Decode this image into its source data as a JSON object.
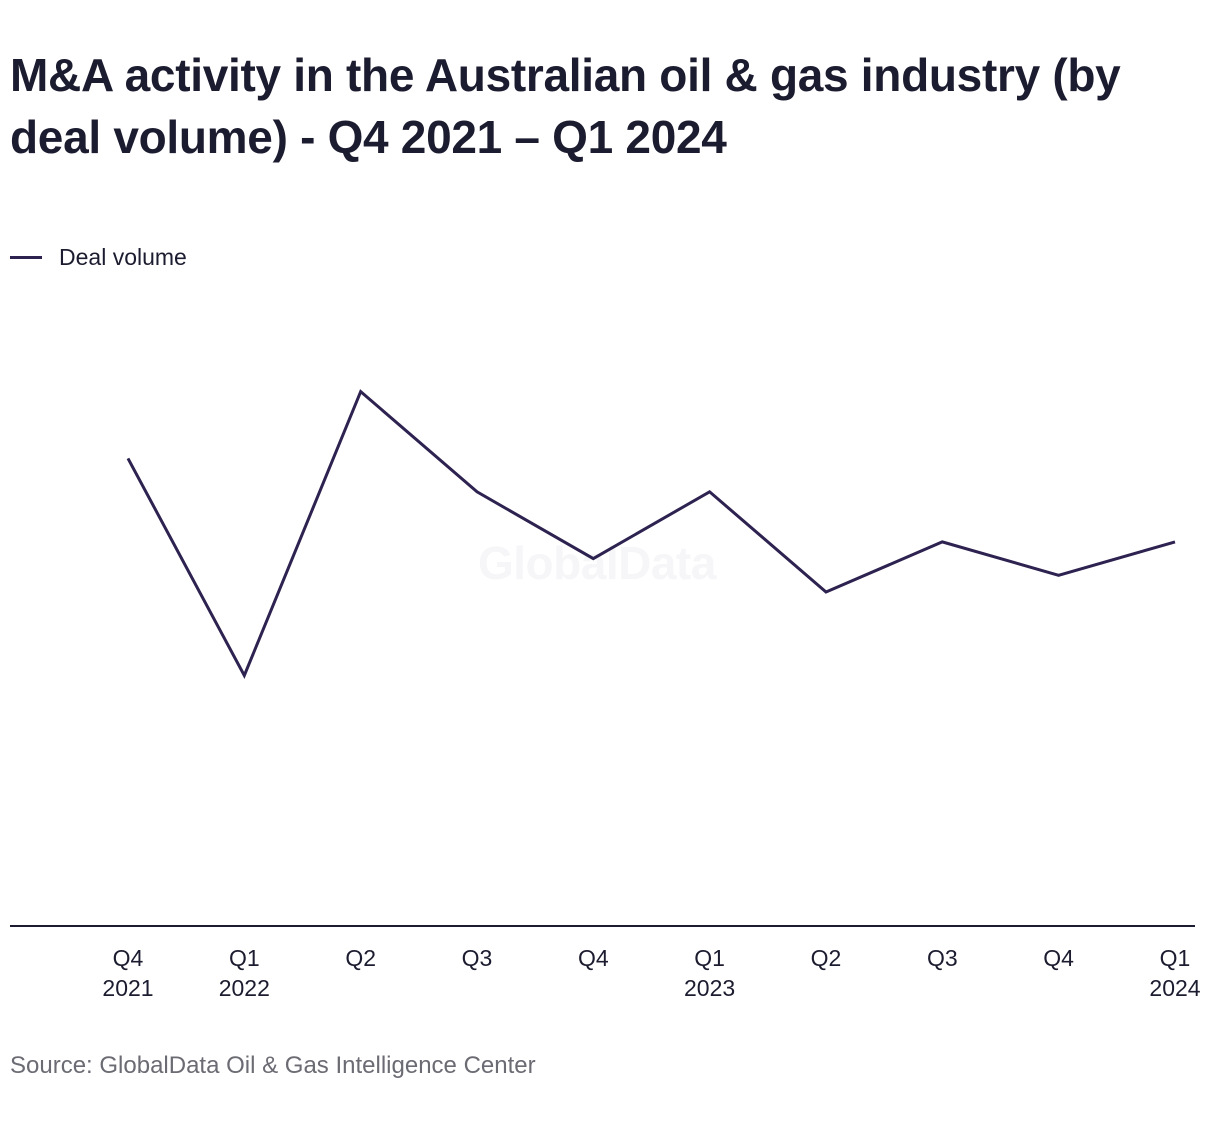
{
  "colors": {
    "series": "#2d2250",
    "axis": "#1c1c30",
    "tick_text": "#1c1c30"
  },
  "chart_data": {
    "type": "line",
    "title": "M&A activity in the Australian oil & gas industry (by deal volume) - Q4 2021 – Q1 2024",
    "categories": [
      [
        "Q4",
        "2021"
      ],
      [
        "Q1",
        "2022"
      ],
      [
        "Q2",
        ""
      ],
      [
        "Q3",
        ""
      ],
      [
        "Q4",
        ""
      ],
      [
        "Q1",
        "2023"
      ],
      [
        "Q2",
        ""
      ],
      [
        "Q3",
        ""
      ],
      [
        "Q4",
        ""
      ],
      [
        "Q1",
        "2024"
      ]
    ],
    "series": [
      {
        "name": "Deal volume",
        "values": [
          28,
          15,
          32,
          26,
          22,
          26,
          20,
          23,
          21,
          23
        ]
      }
    ],
    "ylim": [
      0,
      36
    ],
    "legend_position": "top-left",
    "grid": false,
    "y_axis_visible": false
  },
  "watermark": "GlobalData",
  "source": "Source: GlobalData Oil & Gas Intelligence Center"
}
